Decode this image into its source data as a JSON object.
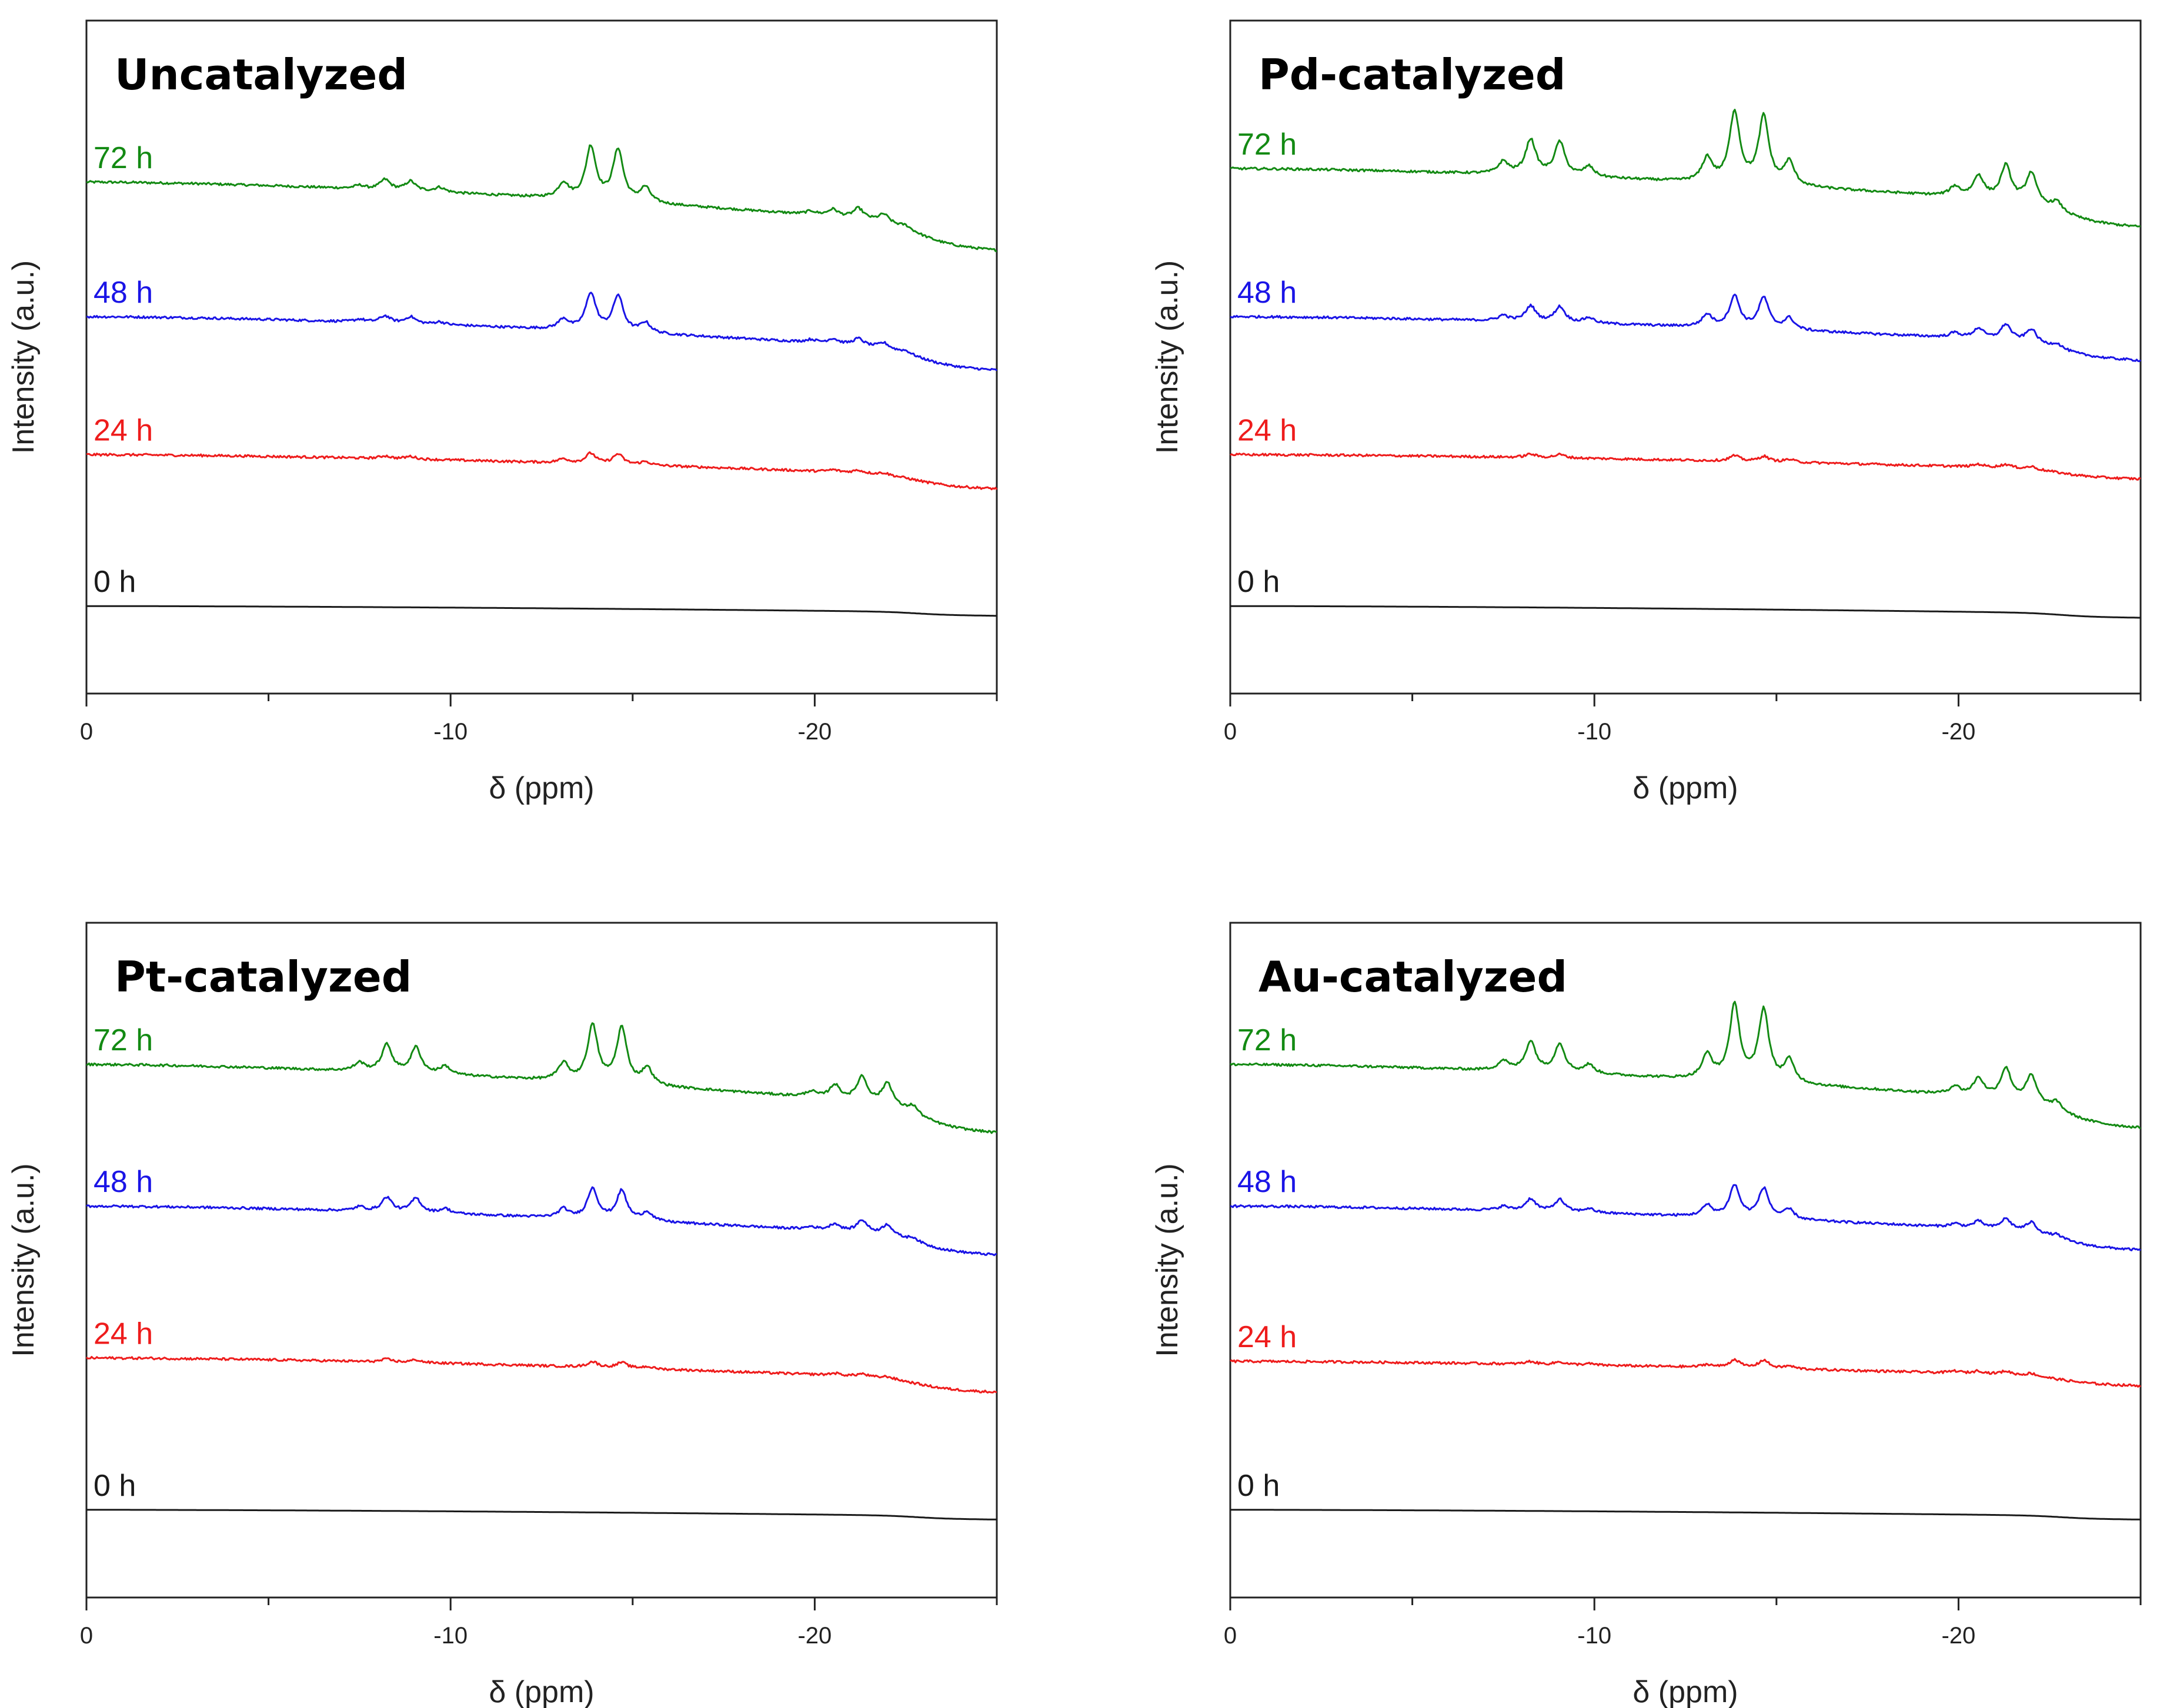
{
  "chart_data": [
    {
      "type": "line",
      "title": "Uncatalyzed",
      "xlabel": "δ (ppm)",
      "ylabel": "Intensity (a.u.)",
      "xlim": [
        0,
        -25
      ],
      "xticks": [
        "0",
        "-10",
        "-20"
      ],
      "grid": false,
      "series": [
        {
          "name": "72 h",
          "color": "#138a13",
          "offset": 76,
          "baseline_start": 0,
          "baseline_end": -7,
          "peaks": [
            [
              -7.5,
              0.5
            ],
            [
              -8.2,
              1.5
            ],
            [
              -8.9,
              1.4
            ],
            [
              -9.7,
              0.7
            ],
            [
              -13.1,
              2.2
            ],
            [
              -13.85,
              7.8
            ],
            [
              -14.6,
              7.6
            ],
            [
              -15.35,
              2.2
            ],
            [
              -19.9,
              0.5
            ],
            [
              -20.5,
              1.0
            ],
            [
              -21.2,
              1.5
            ],
            [
              -21.9,
              1.2
            ],
            [
              -22.5,
              0.5
            ]
          ]
        },
        {
          "name": "48 h",
          "color": "#1a14e6",
          "offset": 56,
          "baseline_start": 0,
          "baseline_end": -5.5,
          "peaks": [
            [
              -7.5,
              0.4
            ],
            [
              -8.2,
              1.0
            ],
            [
              -8.9,
              1.0
            ],
            [
              -9.7,
              0.4
            ],
            [
              -13.1,
              1.5
            ],
            [
              -13.85,
              5.5
            ],
            [
              -14.6,
              5.3
            ],
            [
              -15.35,
              1.5
            ],
            [
              -19.9,
              0.4
            ],
            [
              -20.5,
              0.7
            ],
            [
              -21.2,
              1.0
            ],
            [
              -21.9,
              0.8
            ],
            [
              -22.5,
              0.4
            ]
          ]
        },
        {
          "name": "24 h",
          "color": "#ee1c1c",
          "offset": 35.5,
          "baseline_start": 0,
          "baseline_end": -3.5,
          "peaks": [
            [
              -8.2,
              0.4
            ],
            [
              -8.9,
              0.4
            ],
            [
              -13.1,
              0.6
            ],
            [
              -13.85,
              1.5
            ],
            [
              -14.6,
              1.5
            ],
            [
              -15.35,
              0.5
            ],
            [
              -20.5,
              0.3
            ],
            [
              -21.2,
              0.4
            ],
            [
              -21.9,
              0.3
            ]
          ]
        },
        {
          "name": "0 h",
          "color": "#1a1a1a",
          "offset": 13,
          "baseline_start": 0,
          "baseline_end": -1,
          "peaks": []
        }
      ]
    },
    {
      "type": "line",
      "title": "Pd-catalyzed",
      "xlabel": "δ (ppm)",
      "ylabel": "Intensity (a.u.)",
      "xlim": [
        0,
        -25
      ],
      "xticks": [
        "0",
        "-10",
        "-20"
      ],
      "grid": false,
      "series": [
        {
          "name": "72 h",
          "color": "#138a13",
          "offset": 78,
          "baseline_start": 0,
          "baseline_end": -6,
          "peaks": [
            [
              -7.5,
              1.8
            ],
            [
              -8.25,
              5.2
            ],
            [
              -9.05,
              5.0
            ],
            [
              -9.85,
              1.5
            ],
            [
              -13.1,
              3.5
            ],
            [
              -13.85,
              10.5
            ],
            [
              -14.65,
              10.0
            ],
            [
              -15.35,
              3.5
            ],
            [
              -19.9,
              1.4
            ],
            [
              -20.55,
              3.2
            ],
            [
              -21.3,
              5.0
            ],
            [
              -22.0,
              4.5
            ],
            [
              -22.7,
              1.3
            ]
          ]
        },
        {
          "name": "48 h",
          "color": "#1a14e6",
          "offset": 56,
          "baseline_start": 0,
          "baseline_end": -4.5,
          "peaks": [
            [
              -7.5,
              0.8
            ],
            [
              -8.25,
              2.3
            ],
            [
              -9.05,
              2.3
            ],
            [
              -9.85,
              0.8
            ],
            [
              -13.1,
              1.8
            ],
            [
              -13.85,
              4.7
            ],
            [
              -14.65,
              4.6
            ],
            [
              -15.35,
              1.7
            ],
            [
              -19.9,
              0.7
            ],
            [
              -20.55,
              1.5
            ],
            [
              -21.3,
              2.3
            ],
            [
              -22.0,
              2.0
            ],
            [
              -22.7,
              0.7
            ]
          ]
        },
        {
          "name": "24 h",
          "color": "#ee1c1c",
          "offset": 35.5,
          "baseline_start": 0,
          "baseline_end": -2.5,
          "peaks": [
            [
              -8.25,
              0.5
            ],
            [
              -9.05,
              0.5
            ],
            [
              -13.85,
              0.8
            ],
            [
              -14.65,
              0.8
            ],
            [
              -15.35,
              0.4
            ],
            [
              -20.55,
              0.4
            ],
            [
              -21.3,
              0.5
            ],
            [
              -22.0,
              0.4
            ]
          ]
        },
        {
          "name": "0 h",
          "color": "#1a1a1a",
          "offset": 13,
          "baseline_start": 0,
          "baseline_end": -1.2,
          "peaks": []
        }
      ]
    },
    {
      "type": "line",
      "title": "Pt-catalyzed",
      "xlabel": "δ (ppm)",
      "ylabel": "Intensity (a.u.)",
      "xlim": [
        0,
        -25
      ],
      "xticks": [
        "0",
        "-10",
        "-20"
      ],
      "grid": false,
      "series": [
        {
          "name": "72 h",
          "color": "#138a13",
          "offset": 79,
          "baseline_start": 0,
          "baseline_end": -7,
          "peaks": [
            [
              -7.5,
              1.2
            ],
            [
              -8.25,
              4.0
            ],
            [
              -9.05,
              3.8
            ],
            [
              -9.85,
              1.2
            ],
            [
              -13.1,
              2.5
            ],
            [
              -13.9,
              8.3
            ],
            [
              -14.7,
              8.2
            ],
            [
              -15.4,
              2.5
            ],
            [
              -19.9,
              0.8
            ],
            [
              -20.55,
              2.0
            ],
            [
              -21.3,
              3.6
            ],
            [
              -22.0,
              3.3
            ],
            [
              -22.7,
              1.2
            ]
          ]
        },
        {
          "name": "48 h",
          "color": "#1a14e6",
          "offset": 58,
          "baseline_start": 0,
          "baseline_end": -5,
          "peaks": [
            [
              -7.5,
              0.6
            ],
            [
              -8.25,
              2.1
            ],
            [
              -9.05,
              2.1
            ],
            [
              -9.85,
              0.7
            ],
            [
              -13.1,
              1.3
            ],
            [
              -13.9,
              4.5
            ],
            [
              -14.7,
              4.3
            ],
            [
              -15.4,
              1.3
            ],
            [
              -19.9,
              0.4
            ],
            [
              -20.55,
              1.0
            ],
            [
              -21.3,
              1.8
            ],
            [
              -22.0,
              1.6
            ],
            [
              -22.7,
              0.6
            ]
          ]
        },
        {
          "name": "24 h",
          "color": "#ee1c1c",
          "offset": 35.5,
          "baseline_start": 0,
          "baseline_end": -3.5,
          "peaks": [
            [
              -8.25,
              0.4
            ],
            [
              -9.05,
              0.4
            ],
            [
              -13.9,
              0.8
            ],
            [
              -14.7,
              0.8
            ],
            [
              -15.4,
              0.3
            ],
            [
              -20.55,
              0.3
            ],
            [
              -21.3,
              0.4
            ],
            [
              -22.0,
              0.3
            ]
          ]
        },
        {
          "name": "0 h",
          "color": "#1a1a1a",
          "offset": 13,
          "baseline_start": 0,
          "baseline_end": -1,
          "peaks": []
        }
      ]
    },
    {
      "type": "line",
      "title": "Au-catalyzed",
      "xlabel": "δ (ppm)",
      "ylabel": "Intensity (a.u.)",
      "xlim": [
        0,
        -25
      ],
      "xticks": [
        "0",
        "-10",
        "-20"
      ],
      "grid": false,
      "series": [
        {
          "name": "72 h",
          "color": "#138a13",
          "offset": 79,
          "baseline_start": 0,
          "baseline_end": -6.5,
          "peaks": [
            [
              -7.5,
              1.4
            ],
            [
              -8.25,
              4.4
            ],
            [
              -9.05,
              4.2
            ],
            [
              -9.85,
              1.3
            ],
            [
              -13.1,
              3.5
            ],
            [
              -13.85,
              11.0
            ],
            [
              -14.65,
              10.6
            ],
            [
              -15.35,
              3.3
            ],
            [
              -19.9,
              1.2
            ],
            [
              -20.55,
              2.6
            ],
            [
              -21.3,
              4.4
            ],
            [
              -22.0,
              3.9
            ],
            [
              -22.7,
              1.2
            ]
          ]
        },
        {
          "name": "48 h",
          "color": "#1a14e6",
          "offset": 58,
          "baseline_start": 0,
          "baseline_end": -4.5,
          "peaks": [
            [
              -7.5,
              0.6
            ],
            [
              -8.25,
              1.8
            ],
            [
              -9.05,
              1.8
            ],
            [
              -9.85,
              0.6
            ],
            [
              -13.1,
              1.6
            ],
            [
              -13.85,
              4.7
            ],
            [
              -14.65,
              4.4
            ],
            [
              -15.35,
              1.4
            ],
            [
              -19.9,
              0.5
            ],
            [
              -20.55,
              1.0
            ],
            [
              -21.3,
              1.6
            ],
            [
              -22.0,
              1.5
            ],
            [
              -22.7,
              0.5
            ]
          ]
        },
        {
          "name": "24 h",
          "color": "#ee1c1c",
          "offset": 35,
          "baseline_start": 0,
          "baseline_end": -2.5,
          "peaks": [
            [
              -8.25,
              0.4
            ],
            [
              -9.05,
              0.4
            ],
            [
              -9.85,
              0.2
            ],
            [
              -13.1,
              0.4
            ],
            [
              -13.85,
              1.2
            ],
            [
              -14.65,
              1.2
            ],
            [
              -15.35,
              0.4
            ],
            [
              -19.9,
              0.3
            ],
            [
              -20.55,
              0.4
            ],
            [
              -21.3,
              0.5
            ],
            [
              -22.0,
              0.4
            ]
          ]
        },
        {
          "name": "0 h",
          "color": "#1a1a1a",
          "offset": 13,
          "baseline_start": 0,
          "baseline_end": -1,
          "peaks": []
        }
      ]
    }
  ]
}
